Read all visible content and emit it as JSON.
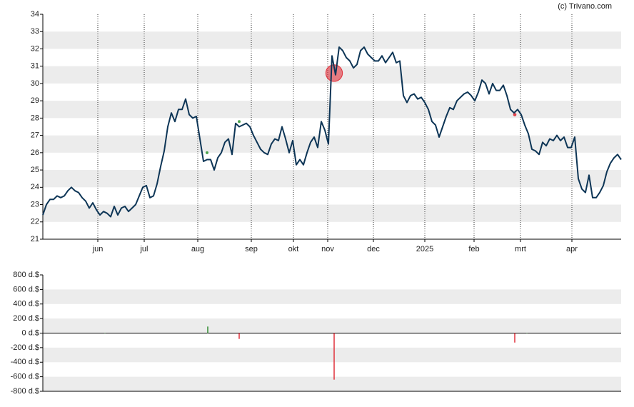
{
  "credit": "(c) Trivano.com",
  "chart_data": [
    {
      "type": "line",
      "xlim": [
        0,
        162
      ],
      "xticks": [
        {
          "value": 15.4,
          "label": "jun"
        },
        {
          "value": 28.4,
          "label": "jul"
        },
        {
          "value": 43.4,
          "label": "aug"
        },
        {
          "value": 58.4,
          "label": "sep"
        },
        {
          "value": 70.2,
          "label": "okt"
        },
        {
          "value": 79.8,
          "label": "nov"
        },
        {
          "value": 92.6,
          "label": "dec"
        },
        {
          "value": 107,
          "label": "2025"
        },
        {
          "value": 120.8,
          "label": "feb"
        },
        {
          "value": 133.8,
          "label": "mrt"
        },
        {
          "value": 148.2,
          "label": "apr"
        }
      ],
      "ylim": [
        21,
        34
      ],
      "yticks": [
        21,
        22,
        23,
        24,
        25,
        26,
        27,
        28,
        29,
        30,
        31,
        32,
        33,
        34
      ],
      "color": "#0d3556",
      "values": [
        22.4,
        23.0,
        23.3,
        23.3,
        23.5,
        23.4,
        23.5,
        23.8,
        24.0,
        23.8,
        23.7,
        23.4,
        23.2,
        22.8,
        23.1,
        22.7,
        22.4,
        22.6,
        22.5,
        22.3,
        22.9,
        22.4,
        22.8,
        22.9,
        22.6,
        22.8,
        23.0,
        23.5,
        24.0,
        24.1,
        23.4,
        23.5,
        24.2,
        25.2,
        26.1,
        27.5,
        28.3,
        27.8,
        28.5,
        28.5,
        29.1,
        28.2,
        28.0,
        28.1,
        26.8,
        25.5,
        25.6,
        25.6,
        25.0,
        25.7,
        26.0,
        26.6,
        26.8,
        25.9,
        27.7,
        27.5,
        27.6,
        27.7,
        27.5,
        27.0,
        26.6,
        26.2,
        26.0,
        25.9,
        26.5,
        26.8,
        26.7,
        27.5,
        26.8,
        26.0,
        26.7,
        25.3,
        25.6,
        25.3,
        26.0,
        26.6,
        26.9,
        26.3,
        27.8,
        27.3,
        26.5,
        31.6,
        30.5,
        32.1,
        31.9,
        31.5,
        31.3,
        30.9,
        31.1,
        31.9,
        32.1,
        31.7,
        31.5,
        31.3,
        31.3,
        31.6,
        31.2,
        31.5,
        31.8,
        31.2,
        31.3,
        29.3,
        28.9,
        29.3,
        29.4,
        29.1,
        29.2,
        28.9,
        28.5,
        27.8,
        27.6,
        26.9,
        27.5,
        28.1,
        28.6,
        28.5,
        29.0,
        29.2,
        29.4,
        29.5,
        29.3,
        29.0,
        29.5,
        30.2,
        30.0,
        29.4,
        30.0,
        29.6,
        29.6,
        29.9,
        29.3,
        28.5,
        28.3,
        28.5,
        28.2,
        27.6,
        27.1,
        26.2,
        26.1,
        25.9,
        26.6,
        26.4,
        26.8,
        26.7,
        27.0,
        26.7,
        26.9,
        26.3,
        26.3,
        26.9,
        24.5,
        23.9,
        23.7,
        24.7,
        23.4,
        23.4,
        23.7,
        24.1,
        24.9,
        25.4,
        25.7,
        25.9,
        25.6
      ],
      "events": {
        "x": [
          46.0,
          55.0,
          81.6,
          132.2
        ],
        "values": [
          26.0,
          27.8,
          30.6,
          28.2
        ],
        "colors": [
          "#3a9a3a",
          "#3a9a3a",
          "#e0303a",
          "#e0303a"
        ]
      }
    },
    {
      "type": "bar",
      "xlim": [
        0,
        162
      ],
      "ylim": [
        -800,
        800
      ],
      "yticks": [
        {
          "value": 800,
          "label": "800 d.$"
        },
        {
          "value": 600,
          "label": "600 d.$"
        },
        {
          "value": 400,
          "label": "400 d.$"
        },
        {
          "value": 200,
          "label": "200 d.$"
        },
        {
          "value": 0,
          "label": "0 d.$"
        },
        {
          "value": -200,
          "label": "-200 d.$"
        },
        {
          "value": -400,
          "label": "-400 d.$"
        },
        {
          "value": -600,
          "label": "-600 d.$"
        },
        {
          "value": -800,
          "label": "-800 d.$"
        }
      ],
      "x": [
        17.4,
        46.2,
        55.0,
        81.6,
        132.2,
        135.6
      ],
      "values": [
        5,
        90,
        -80,
        -640,
        -130,
        5
      ],
      "up_color": "#2e8b2e",
      "down_color": "#e0303a"
    }
  ]
}
